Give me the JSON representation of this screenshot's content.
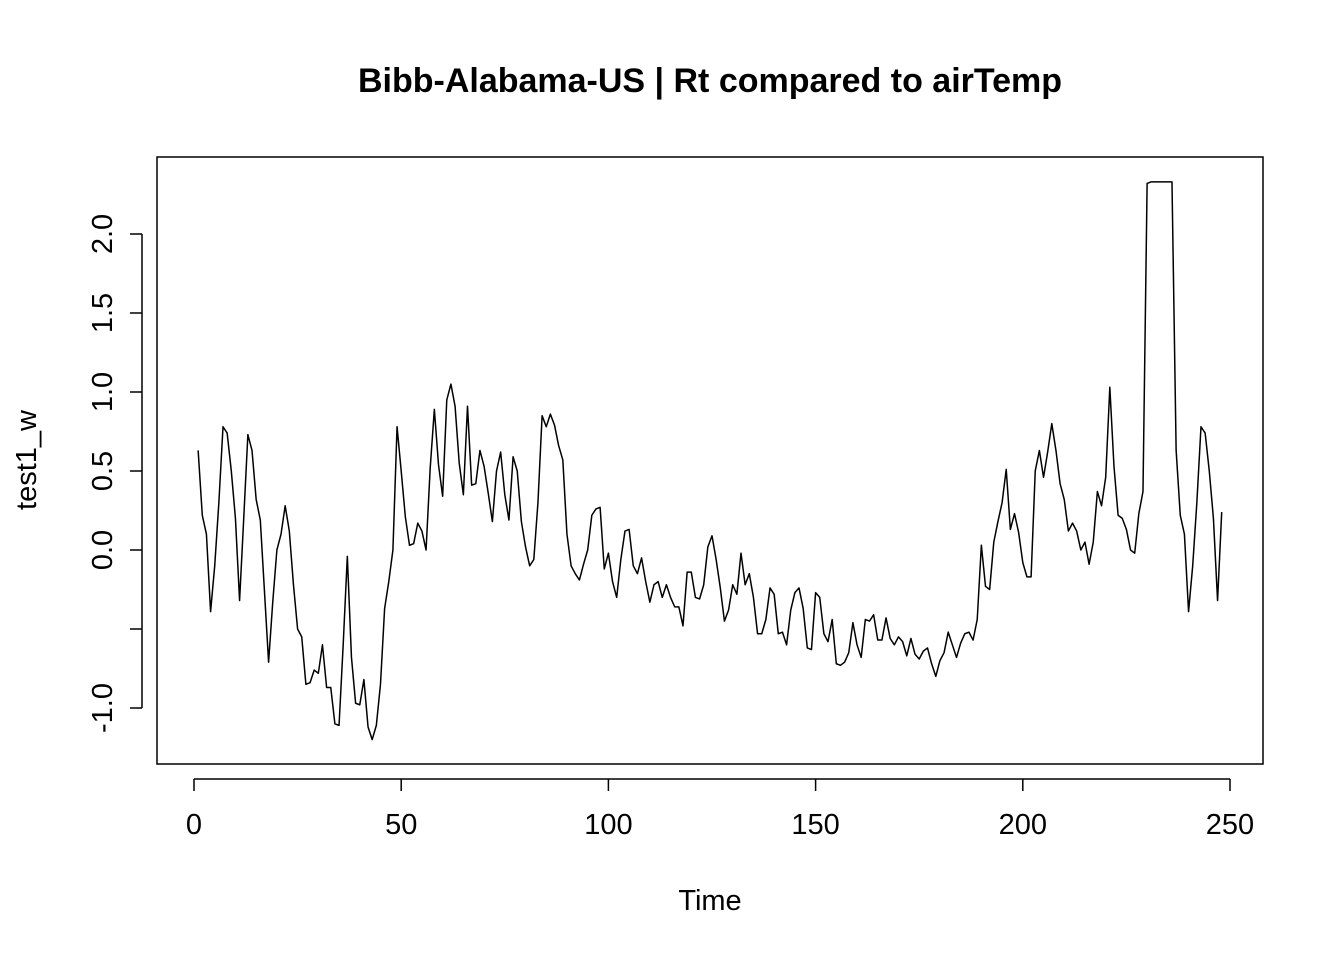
{
  "chart_data": {
    "type": "line",
    "title": "Bibb-Alabama-US | Rt compared to airTemp",
    "xlabel": "Time",
    "ylabel": "test1_w",
    "xlim": [
      1,
      248
    ],
    "ylim": [
      -1.2,
      2.35
    ],
    "x_ticks": [
      0,
      50,
      100,
      150,
      200,
      250
    ],
    "x_tick_labels": [
      "0",
      "50",
      "100",
      "150",
      "200",
      "250"
    ],
    "y_ticks": [
      -1.0,
      -0.5,
      0.0,
      0.5,
      1.0,
      1.5,
      2.0
    ],
    "y_tick_labels": [
      "-1.0",
      "",
      "0.0",
      "0.5",
      "1.0",
      "1.5",
      "2.0"
    ],
    "grid": false,
    "legend": "none",
    "series": [
      {
        "x_start": 1,
        "x_step": 1,
        "values": [
          0.63,
          0.22,
          0.1,
          -0.39,
          -0.1,
          0.3,
          0.78,
          0.74,
          0.5,
          0.2,
          -0.32,
          0.2,
          0.73,
          0.63,
          0.32,
          0.19,
          -0.26,
          -0.71,
          -0.33,
          0.0,
          0.1,
          0.28,
          0.12,
          -0.22,
          -0.5,
          -0.55,
          -0.85,
          -0.84,
          -0.76,
          -0.78,
          -0.6,
          -0.87,
          -0.87,
          -1.1,
          -1.11,
          -0.6,
          -0.04,
          -0.68,
          -0.97,
          -0.98,
          -0.82,
          -1.12,
          -1.2,
          -1.11,
          -0.85,
          -0.37,
          -0.2,
          0.0,
          0.78,
          0.5,
          0.21,
          0.03,
          0.04,
          0.17,
          0.12,
          0.0,
          0.52,
          0.89,
          0.54,
          0.34,
          0.95,
          1.05,
          0.91,
          0.55,
          0.35,
          0.91,
          0.41,
          0.42,
          0.63,
          0.53,
          0.36,
          0.18,
          0.5,
          0.62,
          0.35,
          0.19,
          0.59,
          0.5,
          0.18,
          0.02,
          -0.1,
          -0.06,
          0.3,
          0.85,
          0.78,
          0.86,
          0.79,
          0.66,
          0.57,
          0.1,
          -0.1,
          -0.15,
          -0.19,
          -0.09,
          0.0,
          0.22,
          0.26,
          0.27,
          -0.12,
          -0.02,
          -0.2,
          -0.3,
          -0.06,
          0.12,
          0.13,
          -0.1,
          -0.15,
          -0.05,
          -0.2,
          -0.33,
          -0.22,
          -0.2,
          -0.3,
          -0.22,
          -0.3,
          -0.36,
          -0.36,
          -0.48,
          -0.14,
          -0.14,
          -0.3,
          -0.31,
          -0.22,
          0.02,
          0.09,
          -0.06,
          -0.24,
          -0.45,
          -0.38,
          -0.22,
          -0.28,
          -0.02,
          -0.22,
          -0.15,
          -0.3,
          -0.53,
          -0.53,
          -0.44,
          -0.24,
          -0.28,
          -0.53,
          -0.52,
          -0.6,
          -0.38,
          -0.27,
          -0.24,
          -0.37,
          -0.62,
          -0.63,
          -0.27,
          -0.3,
          -0.53,
          -0.58,
          -0.44,
          -0.72,
          -0.73,
          -0.71,
          -0.65,
          -0.46,
          -0.6,
          -0.68,
          -0.44,
          -0.45,
          -0.41,
          -0.57,
          -0.57,
          -0.43,
          -0.56,
          -0.6,
          -0.55,
          -0.58,
          -0.67,
          -0.56,
          -0.66,
          -0.69,
          -0.64,
          -0.62,
          -0.72,
          -0.8,
          -0.7,
          -0.65,
          -0.52,
          -0.6,
          -0.68,
          -0.59,
          -0.53,
          -0.52,
          -0.57,
          -0.44,
          0.03,
          -0.23,
          -0.25,
          0.05,
          0.18,
          0.3,
          0.51,
          0.13,
          0.23,
          0.11,
          -0.08,
          -0.17,
          -0.17,
          0.5,
          0.63,
          0.46,
          0.62,
          0.8,
          0.63,
          0.42,
          0.32,
          0.12,
          0.17,
          0.12,
          0.0,
          0.05,
          -0.09,
          0.05,
          0.37,
          0.28,
          0.46,
          1.03,
          0.53,
          0.22,
          0.2,
          0.13,
          0.0,
          -0.02,
          0.23,
          0.37,
          2.32,
          2.33,
          2.33,
          2.33,
          2.33,
          2.33,
          2.33,
          0.63,
          0.22,
          0.1,
          -0.39,
          -0.1,
          0.3,
          0.78,
          0.74,
          0.5,
          0.2,
          -0.32,
          0.24
        ]
      }
    ]
  }
}
